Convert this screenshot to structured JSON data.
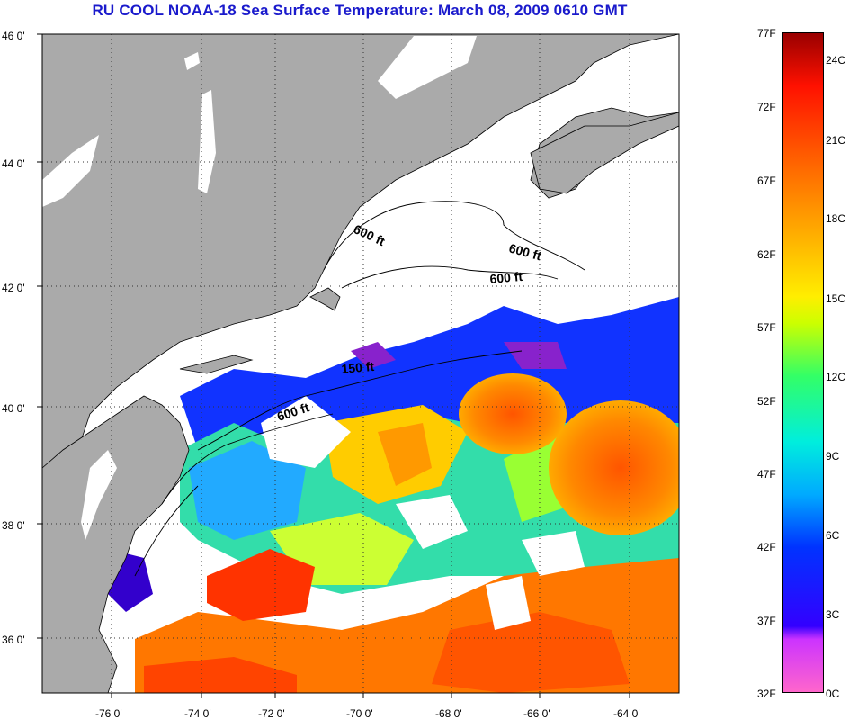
{
  "title": "RU COOL  NOAA-18  Sea Surface Temperature:  March 08, 2009 0610 GMT",
  "map": {
    "lat_labels": [
      "46 0'",
      "44 0'",
      "42 0'",
      "40 0'",
      "38 0'",
      "36 0'"
    ],
    "lon_labels": [
      "-76 0'",
      "-74 0'",
      "-72 0'",
      "-70 0'",
      "-68 0'",
      "-66 0'",
      "-64 0'"
    ],
    "contour_labels": [
      "600 ft",
      "600 ft",
      "600 ft",
      "150 ft",
      "600 ft"
    ],
    "colors": {
      "land": "#aaaaaa",
      "ocean_missing": "#ffffff",
      "border": "#000000"
    }
  },
  "colorbar": {
    "fahrenheit_labels": [
      "77F",
      "72F",
      "67F",
      "62F",
      "57F",
      "52F",
      "47F",
      "42F",
      "37F",
      "32F"
    ],
    "celsius_labels": [
      "24C",
      "21C",
      "18C",
      "15C",
      "12C",
      "9C",
      "6C",
      "3C",
      "0C"
    ]
  }
}
